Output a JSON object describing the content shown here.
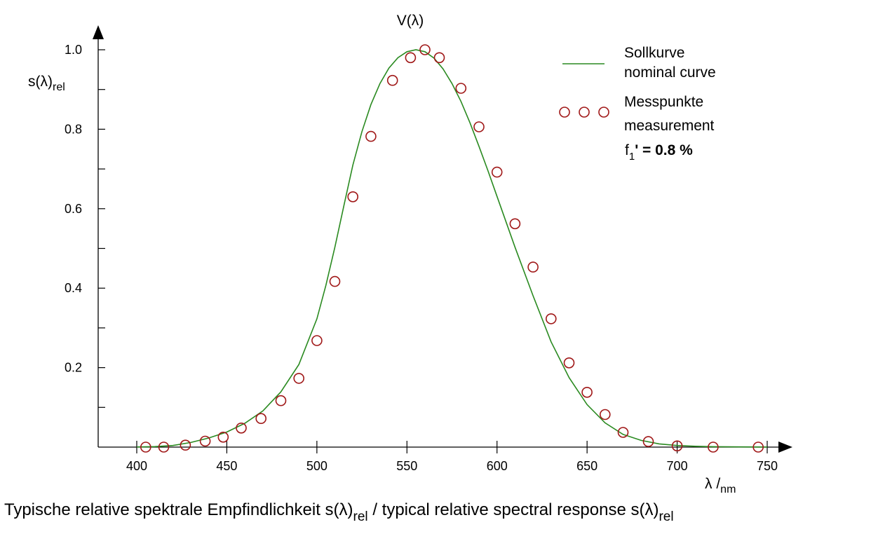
{
  "chart_data": {
    "type": "line",
    "title": "V(λ)",
    "xlabel": {
      "main": "λ /",
      "sub": "nm"
    },
    "ylabel": {
      "main": "s(λ)",
      "sub": "rel"
    },
    "xlim": [
      380,
      760
    ],
    "ylim": [
      0,
      1.0
    ],
    "x_ticks": [
      400,
      450,
      500,
      550,
      600,
      650,
      700,
      750
    ],
    "y_tick_labels": [
      {
        "value": 1.0,
        "label": "1.0"
      },
      {
        "value": 0.8,
        "label": "0.8"
      },
      {
        "value": 0.6,
        "label": "0.6"
      },
      {
        "value": 0.4,
        "label": "0.4"
      },
      {
        "value": 0.2,
        "label": "0.2"
      }
    ],
    "y_minor_ticks": [
      0.1,
      0.3,
      0.5,
      0.7,
      0.9
    ],
    "series": [
      {
        "name": "Sollkurve / nominal curve",
        "color": "#2a8a20",
        "style": "line",
        "x": [
          400,
          410,
          420,
          430,
          440,
          450,
          460,
          470,
          480,
          490,
          500,
          505,
          510,
          515,
          520,
          525,
          530,
          535,
          540,
          545,
          550,
          555,
          560,
          565,
          570,
          575,
          580,
          585,
          590,
          595,
          600,
          610,
          620,
          630,
          640,
          650,
          660,
          670,
          680,
          690,
          700,
          710,
          720,
          750
        ],
        "y": [
          0.0004,
          0.0012,
          0.004,
          0.0116,
          0.023,
          0.038,
          0.06,
          0.091,
          0.139,
          0.208,
          0.323,
          0.407,
          0.503,
          0.608,
          0.71,
          0.794,
          0.862,
          0.915,
          0.954,
          0.98,
          0.995,
          1.0,
          0.995,
          0.979,
          0.952,
          0.915,
          0.87,
          0.816,
          0.757,
          0.695,
          0.631,
          0.503,
          0.381,
          0.265,
          0.175,
          0.107,
          0.061,
          0.032,
          0.017,
          0.0082,
          0.0041,
          0.0021,
          0.001,
          0.0001
        ]
      },
      {
        "name": "Messpunkte / measurement",
        "color": "#a01818",
        "style": "open-circle",
        "x": [
          405,
          415,
          427,
          438,
          448,
          458,
          469,
          480,
          490,
          500,
          510,
          520,
          530,
          542,
          552,
          560,
          568,
          580,
          590,
          600,
          610,
          620,
          630,
          640,
          650,
          660,
          670,
          684,
          700,
          720,
          745
        ],
        "y": [
          0.0,
          0.0,
          0.005,
          0.015,
          0.025,
          0.048,
          0.072,
          0.117,
          0.173,
          0.268,
          0.417,
          0.63,
          0.782,
          0.923,
          0.98,
          1.0,
          0.98,
          0.903,
          0.806,
          0.692,
          0.562,
          0.453,
          0.323,
          0.212,
          0.138,
          0.082,
          0.037,
          0.014,
          0.003,
          0.0,
          0.0
        ]
      }
    ]
  },
  "legend": {
    "nominal_line1": "Sollkurve",
    "nominal_line2": "nominal curve",
    "meas_line1": "Messpunkte",
    "meas_line2": "measurement",
    "f1_main": "f",
    "f1_sub": "1",
    "f1_rest": "' = 0.8 %"
  },
  "caption": {
    "part1": "Typische relative spektrale Empfindlichkeit s(λ)",
    "sub1": "rel",
    "part2": " / typical relative spectral response s(λ)",
    "sub2": "rel"
  }
}
